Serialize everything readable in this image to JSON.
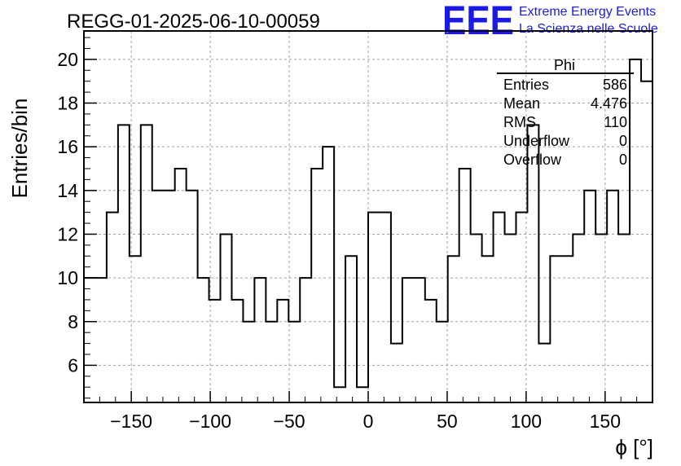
{
  "header": {
    "run_title": "REGG-01-2025-06-10-00059",
    "logo_mark": "EEE",
    "logo_line1": "Extreme Energy Events",
    "logo_line2": "La Scienza nelle Scuole"
  },
  "stats_box": {
    "title": "Phi",
    "rows": [
      {
        "label": "Entries",
        "value": "586"
      },
      {
        "label": "Mean",
        "value": "4.476"
      },
      {
        "label": "RMS",
        "value": "110"
      },
      {
        "label": "Underflow",
        "value": "0"
      },
      {
        "label": "Overflow",
        "value": "0"
      }
    ]
  },
  "chart_data": {
    "type": "bar",
    "subtype": "histogram-step",
    "xlabel": "ϕ [°]",
    "ylabel": "Entries/bin",
    "xlim": [
      -180,
      180
    ],
    "ylim": [
      4.3,
      21.3
    ],
    "bin_width": 7.2,
    "grid": true,
    "x_ticks": [
      -150,
      -100,
      -50,
      0,
      50,
      100,
      150
    ],
    "y_ticks": [
      6,
      8,
      10,
      12,
      14,
      16,
      18,
      20
    ],
    "x_tick_labels": [
      "−150",
      "−100",
      "−50",
      "0",
      "50",
      "100",
      "150"
    ],
    "y_tick_labels": [
      "6",
      "8",
      "10",
      "12",
      "14",
      "16",
      "18",
      "20"
    ],
    "bin_edges_start": -180,
    "values": [
      10,
      10,
      13,
      17,
      11,
      17,
      14,
      14,
      15,
      14,
      10,
      9,
      12,
      9,
      8,
      10,
      8,
      9,
      8,
      10,
      15,
      16,
      5,
      11,
      5,
      13,
      13,
      7,
      10,
      10,
      9,
      8,
      11,
      15,
      12,
      11,
      13,
      12,
      13,
      17,
      7,
      11,
      11,
      12,
      14,
      12,
      14,
      12,
      20,
      19
    ]
  }
}
